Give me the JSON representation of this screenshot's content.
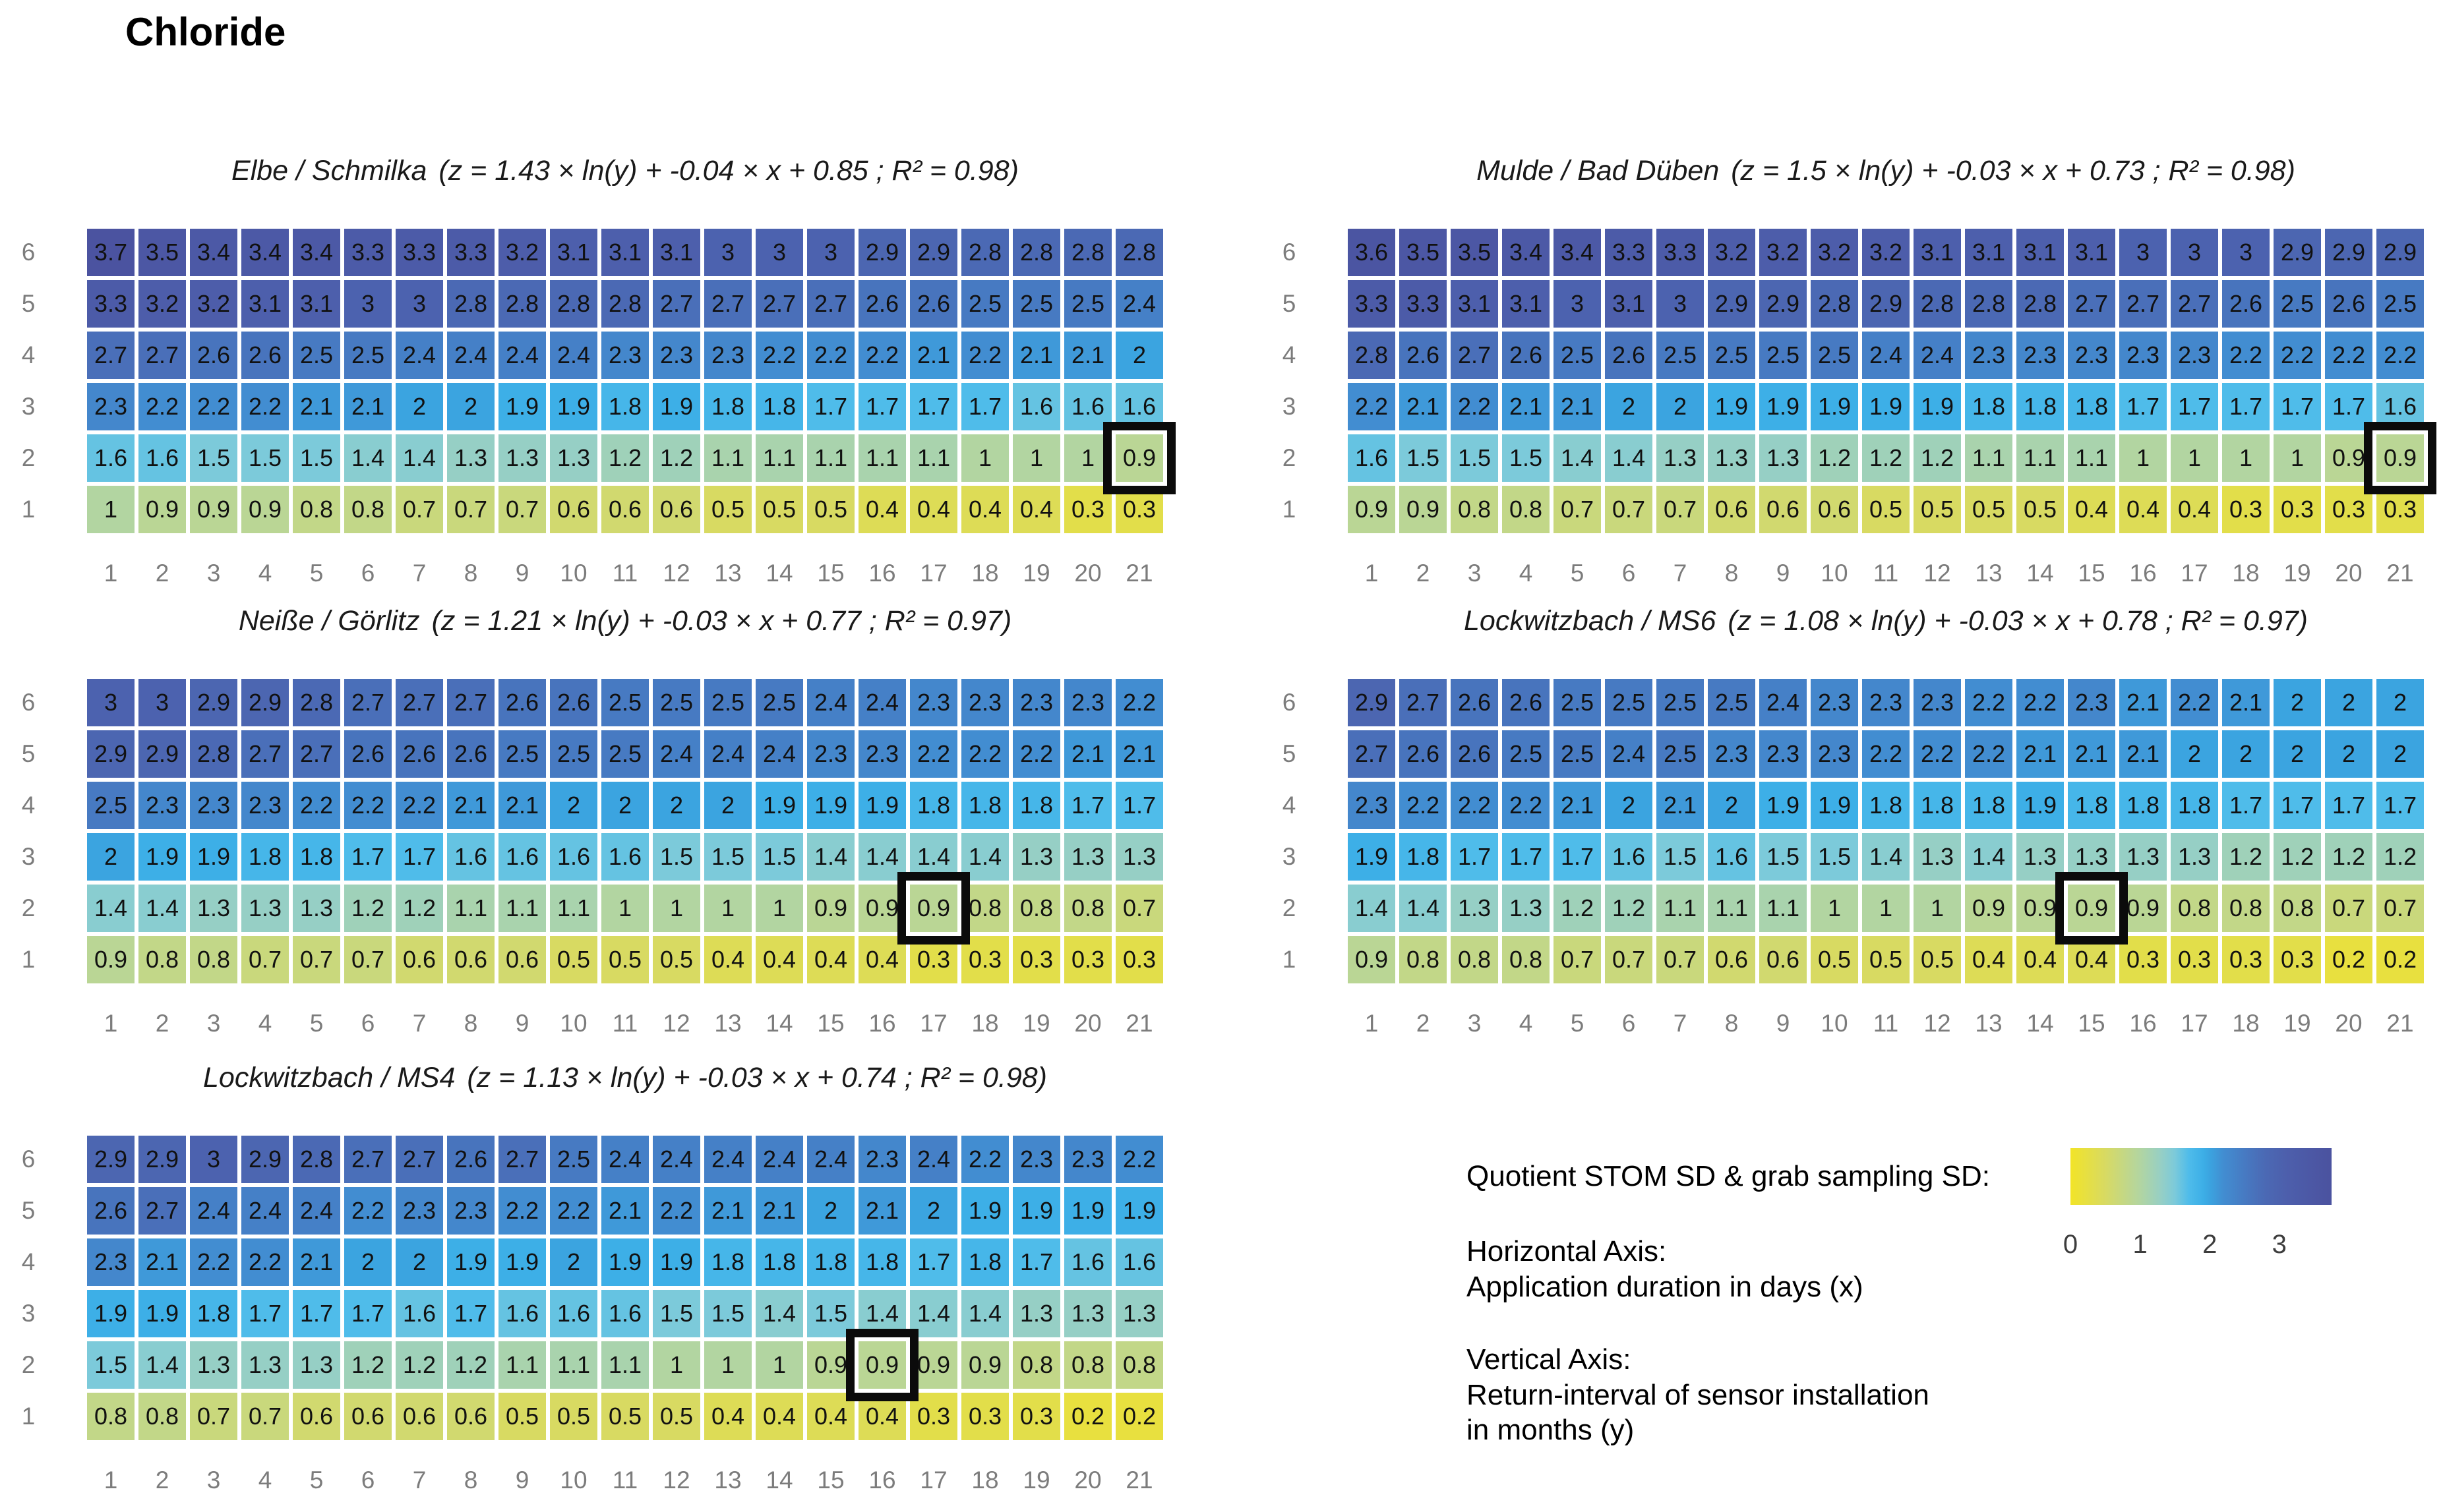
{
  "title": "Chloride",
  "legend": {
    "colorbar_label": "Quotient STOM SD & grab sampling SD:",
    "colorbar": {
      "ticks": [
        0,
        1,
        2,
        3
      ],
      "range": [
        0,
        3.75
      ]
    },
    "horizontal_axis_heading": "Horizontal Axis:",
    "horizontal_axis_desc": "Application duration in days (x)",
    "vertical_axis_heading": "Vertical Axis:",
    "vertical_axis_desc_line1": "Return-interval of sensor installation",
    "vertical_axis_desc_line2": "in months (y)"
  },
  "colors": {
    "axis_label": "#7c7c7c",
    "cell_text": "#111111",
    "highlight_frame": "#0b0b0b",
    "colormap": [
      [
        0.0,
        "#f2e427"
      ],
      [
        0.5,
        "#d8da62"
      ],
      [
        0.9,
        "#bad695"
      ],
      [
        1.0,
        "#b2d5a1"
      ],
      [
        1.3,
        "#96cfc5"
      ],
      [
        1.5,
        "#7ccada"
      ],
      [
        1.7,
        "#4fbcea"
      ],
      [
        1.9,
        "#3dafe7"
      ],
      [
        2.0,
        "#3ba4e0"
      ],
      [
        2.2,
        "#428dd1"
      ],
      [
        2.5,
        "#477ac2"
      ],
      [
        2.8,
        "#4b69b4"
      ],
      [
        3.1,
        "#4d5fac"
      ],
      [
        3.7,
        "#4b53a0"
      ]
    ]
  },
  "chart_data": [
    {
      "type": "heatmap",
      "station": "Elbe / Schmilka",
      "equation": "(z = 1.43 × ln(y) + -0.04 × x + 0.85 ; R² = 0.98)",
      "x_ticks": [
        1,
        2,
        3,
        4,
        5,
        6,
        7,
        8,
        9,
        10,
        11,
        12,
        13,
        14,
        15,
        16,
        17,
        18,
        19,
        20,
        21
      ],
      "y_ticks": [
        6,
        5,
        4,
        3,
        2,
        1
      ],
      "rows": [
        {
          "y": 6,
          "values": [
            3.7,
            3.5,
            3.4,
            3.4,
            3.4,
            3.3,
            3.3,
            3.3,
            3.2,
            3.1,
            3.1,
            3.1,
            3,
            3,
            3,
            2.9,
            2.9,
            2.8,
            2.8,
            2.8,
            2.8
          ]
        },
        {
          "y": 5,
          "values": [
            3.3,
            3.2,
            3.2,
            3.1,
            3.1,
            3,
            3,
            2.8,
            2.8,
            2.8,
            2.8,
            2.7,
            2.7,
            2.7,
            2.7,
            2.6,
            2.6,
            2.5,
            2.5,
            2.5,
            2.4
          ]
        },
        {
          "y": 4,
          "values": [
            2.7,
            2.7,
            2.6,
            2.6,
            2.5,
            2.5,
            2.4,
            2.4,
            2.4,
            2.4,
            2.3,
            2.3,
            2.3,
            2.2,
            2.2,
            2.2,
            2.1,
            2.2,
            2.1,
            2.1,
            2
          ]
        },
        {
          "y": 3,
          "values": [
            2.3,
            2.2,
            2.2,
            2.2,
            2.1,
            2.1,
            2,
            2,
            1.9,
            1.9,
            1.8,
            1.9,
            1.8,
            1.8,
            1.7,
            1.7,
            1.7,
            1.7,
            1.6,
            1.6,
            1.6
          ]
        },
        {
          "y": 2,
          "values": [
            1.6,
            1.6,
            1.5,
            1.5,
            1.5,
            1.4,
            1.4,
            1.3,
            1.3,
            1.3,
            1.2,
            1.2,
            1.1,
            1.1,
            1.1,
            1.1,
            1.1,
            1,
            1,
            1,
            0.9
          ]
        },
        {
          "y": 1,
          "values": [
            1,
            0.9,
            0.9,
            0.9,
            0.8,
            0.8,
            0.7,
            0.7,
            0.7,
            0.6,
            0.6,
            0.6,
            0.5,
            0.5,
            0.5,
            0.4,
            0.4,
            0.4,
            0.4,
            0.3,
            0.3
          ]
        }
      ],
      "highlight": {
        "y": 2,
        "x": 21
      }
    },
    {
      "type": "heatmap",
      "station": "Mulde / Bad Düben",
      "equation": "(z = 1.5 × ln(y) + -0.03 × x + 0.73 ; R² = 0.98)",
      "x_ticks": [
        1,
        2,
        3,
        4,
        5,
        6,
        7,
        8,
        9,
        10,
        11,
        12,
        13,
        14,
        15,
        16,
        17,
        18,
        19,
        20,
        21
      ],
      "y_ticks": [
        6,
        5,
        4,
        3,
        2,
        1
      ],
      "rows": [
        {
          "y": 6,
          "values": [
            3.6,
            3.5,
            3.5,
            3.4,
            3.4,
            3.3,
            3.3,
            3.2,
            3.2,
            3.2,
            3.2,
            3.1,
            3.1,
            3.1,
            3.1,
            3,
            3,
            3,
            2.9,
            2.9,
            2.9
          ]
        },
        {
          "y": 5,
          "values": [
            3.3,
            3.3,
            3.1,
            3.1,
            3,
            3.1,
            3,
            2.9,
            2.9,
            2.8,
            2.9,
            2.8,
            2.8,
            2.8,
            2.7,
            2.7,
            2.7,
            2.6,
            2.5,
            2.6,
            2.5
          ]
        },
        {
          "y": 4,
          "values": [
            2.8,
            2.6,
            2.7,
            2.6,
            2.5,
            2.6,
            2.5,
            2.5,
            2.5,
            2.5,
            2.4,
            2.4,
            2.3,
            2.3,
            2.3,
            2.3,
            2.3,
            2.2,
            2.2,
            2.2,
            2.2
          ]
        },
        {
          "y": 3,
          "values": [
            2.2,
            2.1,
            2.2,
            2.1,
            2.1,
            2,
            2,
            1.9,
            1.9,
            1.9,
            1.9,
            1.9,
            1.8,
            1.8,
            1.8,
            1.7,
            1.7,
            1.7,
            1.7,
            1.7,
            1.6
          ]
        },
        {
          "y": 2,
          "values": [
            1.6,
            1.5,
            1.5,
            1.5,
            1.4,
            1.4,
            1.3,
            1.3,
            1.3,
            1.2,
            1.2,
            1.2,
            1.1,
            1.1,
            1.1,
            1,
            1,
            1,
            1,
            0.9,
            0.9
          ]
        },
        {
          "y": 1,
          "values": [
            0.9,
            0.9,
            0.8,
            0.8,
            0.7,
            0.7,
            0.7,
            0.6,
            0.6,
            0.6,
            0.5,
            0.5,
            0.5,
            0.5,
            0.4,
            0.4,
            0.4,
            0.3,
            0.3,
            0.3,
            0.3
          ]
        }
      ],
      "highlight": {
        "y": 2,
        "x": 21
      }
    },
    {
      "type": "heatmap",
      "station": "Neiße / Görlitz",
      "equation": "(z = 1.21 × ln(y) + -0.03 × x + 0.77 ; R² = 0.97)",
      "x_ticks": [
        1,
        2,
        3,
        4,
        5,
        6,
        7,
        8,
        9,
        10,
        11,
        12,
        13,
        14,
        15,
        16,
        17,
        18,
        19,
        20,
        21
      ],
      "y_ticks": [
        6,
        5,
        4,
        3,
        2,
        1
      ],
      "rows": [
        {
          "y": 6,
          "values": [
            3,
            3,
            2.9,
            2.9,
            2.8,
            2.7,
            2.7,
            2.7,
            2.6,
            2.6,
            2.5,
            2.5,
            2.5,
            2.5,
            2.4,
            2.4,
            2.3,
            2.3,
            2.3,
            2.3,
            2.2
          ]
        },
        {
          "y": 5,
          "values": [
            2.9,
            2.9,
            2.8,
            2.7,
            2.7,
            2.6,
            2.6,
            2.6,
            2.5,
            2.5,
            2.5,
            2.4,
            2.4,
            2.4,
            2.3,
            2.3,
            2.2,
            2.2,
            2.2,
            2.1,
            2.1
          ]
        },
        {
          "y": 4,
          "values": [
            2.5,
            2.3,
            2.3,
            2.3,
            2.2,
            2.2,
            2.2,
            2.1,
            2.1,
            2,
            2,
            2,
            2,
            1.9,
            1.9,
            1.9,
            1.8,
            1.8,
            1.8,
            1.7,
            1.7
          ]
        },
        {
          "y": 3,
          "values": [
            2,
            1.9,
            1.9,
            1.8,
            1.8,
            1.7,
            1.7,
            1.6,
            1.6,
            1.6,
            1.6,
            1.5,
            1.5,
            1.5,
            1.4,
            1.4,
            1.4,
            1.4,
            1.3,
            1.3,
            1.3
          ]
        },
        {
          "y": 2,
          "values": [
            1.4,
            1.4,
            1.3,
            1.3,
            1.3,
            1.2,
            1.2,
            1.1,
            1.1,
            1.1,
            1,
            1,
            1,
            1,
            0.9,
            0.9,
            0.9,
            0.8,
            0.8,
            0.8,
            0.7
          ]
        },
        {
          "y": 1,
          "values": [
            0.9,
            0.8,
            0.8,
            0.7,
            0.7,
            0.7,
            0.6,
            0.6,
            0.6,
            0.5,
            0.5,
            0.5,
            0.4,
            0.4,
            0.4,
            0.4,
            0.3,
            0.3,
            0.3,
            0.3,
            0.3
          ]
        }
      ],
      "highlight": {
        "y": 2,
        "x": 17
      }
    },
    {
      "type": "heatmap",
      "station": "Lockwitzbach / MS6",
      "equation": "(z = 1.08 × ln(y) + -0.03 × x + 0.78 ; R² = 0.97)",
      "x_ticks": [
        1,
        2,
        3,
        4,
        5,
        6,
        7,
        8,
        9,
        10,
        11,
        12,
        13,
        14,
        15,
        16,
        17,
        18,
        19,
        20,
        21
      ],
      "y_ticks": [
        6,
        5,
        4,
        3,
        2,
        1
      ],
      "rows": [
        {
          "y": 6,
          "values": [
            2.9,
            2.7,
            2.6,
            2.6,
            2.5,
            2.5,
            2.5,
            2.5,
            2.4,
            2.3,
            2.3,
            2.3,
            2.2,
            2.2,
            2.3,
            2.1,
            2.2,
            2.1,
            2,
            2,
            2
          ]
        },
        {
          "y": 5,
          "values": [
            2.7,
            2.6,
            2.6,
            2.5,
            2.5,
            2.4,
            2.5,
            2.3,
            2.3,
            2.3,
            2.2,
            2.2,
            2.2,
            2.1,
            2.1,
            2.1,
            2,
            2,
            2,
            2,
            2
          ]
        },
        {
          "y": 4,
          "values": [
            2.3,
            2.2,
            2.2,
            2.2,
            2.1,
            2,
            2.1,
            2,
            1.9,
            1.9,
            1.8,
            1.8,
            1.8,
            1.9,
            1.8,
            1.8,
            1.8,
            1.7,
            1.7,
            1.7,
            1.7
          ]
        },
        {
          "y": 3,
          "values": [
            1.9,
            1.8,
            1.7,
            1.7,
            1.7,
            1.6,
            1.5,
            1.6,
            1.5,
            1.5,
            1.4,
            1.3,
            1.4,
            1.3,
            1.3,
            1.3,
            1.3,
            1.2,
            1.2,
            1.2,
            1.2
          ]
        },
        {
          "y": 2,
          "values": [
            1.4,
            1.4,
            1.3,
            1.3,
            1.2,
            1.2,
            1.1,
            1.1,
            1.1,
            1,
            1,
            1,
            0.9,
            0.9,
            0.9,
            0.9,
            0.8,
            0.8,
            0.8,
            0.7,
            0.7
          ]
        },
        {
          "y": 1,
          "values": [
            0.9,
            0.8,
            0.8,
            0.8,
            0.7,
            0.7,
            0.7,
            0.6,
            0.6,
            0.5,
            0.5,
            0.5,
            0.4,
            0.4,
            0.4,
            0.3,
            0.3,
            0.3,
            0.3,
            0.2,
            0.2
          ]
        }
      ],
      "highlight": {
        "y": 2,
        "x": 15
      }
    },
    {
      "type": "heatmap",
      "station": "Lockwitzbach / MS4",
      "equation": "(z = 1.13 × ln(y) + -0.03 × x + 0.74 ; R² = 0.98)",
      "x_ticks": [
        1,
        2,
        3,
        4,
        5,
        6,
        7,
        8,
        9,
        10,
        11,
        12,
        13,
        14,
        15,
        16,
        17,
        18,
        19,
        20,
        21
      ],
      "y_ticks": [
        6,
        5,
        4,
        3,
        2,
        1
      ],
      "rows": [
        {
          "y": 6,
          "values": [
            2.9,
            2.9,
            3,
            2.9,
            2.8,
            2.7,
            2.7,
            2.6,
            2.7,
            2.5,
            2.4,
            2.4,
            2.4,
            2.4,
            2.4,
            2.3,
            2.4,
            2.2,
            2.3,
            2.3,
            2.2
          ]
        },
        {
          "y": 5,
          "values": [
            2.6,
            2.7,
            2.4,
            2.4,
            2.4,
            2.2,
            2.3,
            2.3,
            2.2,
            2.2,
            2.1,
            2.2,
            2.1,
            2.1,
            2,
            2.1,
            2,
            1.9,
            1.9,
            1.9,
            1.9
          ]
        },
        {
          "y": 4,
          "values": [
            2.3,
            2.1,
            2.2,
            2.2,
            2.1,
            2,
            2,
            1.9,
            1.9,
            2,
            1.9,
            1.9,
            1.8,
            1.8,
            1.8,
            1.8,
            1.7,
            1.8,
            1.7,
            1.6,
            1.6
          ]
        },
        {
          "y": 3,
          "values": [
            1.9,
            1.9,
            1.8,
            1.7,
            1.7,
            1.7,
            1.6,
            1.7,
            1.6,
            1.6,
            1.6,
            1.5,
            1.5,
            1.4,
            1.5,
            1.4,
            1.4,
            1.4,
            1.3,
            1.3,
            1.3
          ]
        },
        {
          "y": 2,
          "values": [
            1.5,
            1.4,
            1.3,
            1.3,
            1.3,
            1.2,
            1.2,
            1.2,
            1.1,
            1.1,
            1.1,
            1,
            1,
            1,
            0.9,
            0.9,
            0.9,
            0.9,
            0.8,
            0.8,
            0.8
          ]
        },
        {
          "y": 1,
          "values": [
            0.8,
            0.8,
            0.7,
            0.7,
            0.6,
            0.6,
            0.6,
            0.6,
            0.5,
            0.5,
            0.5,
            0.5,
            0.4,
            0.4,
            0.4,
            0.4,
            0.3,
            0.3,
            0.3,
            0.2,
            0.2
          ]
        }
      ],
      "highlight": {
        "y": 2,
        "x": 16
      }
    }
  ]
}
